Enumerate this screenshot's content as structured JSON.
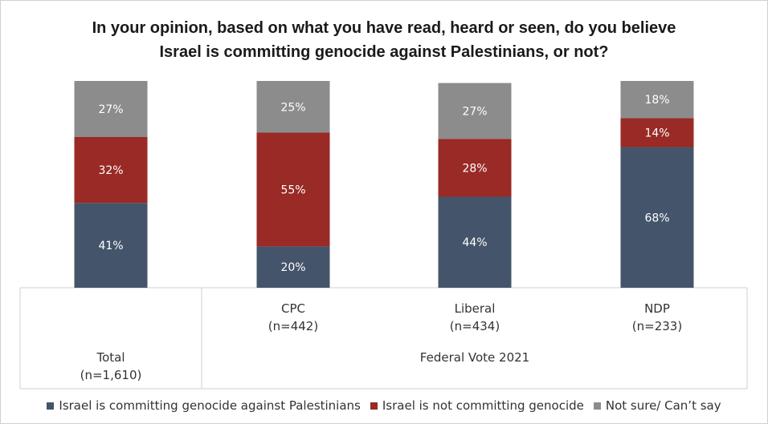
{
  "chart_data": {
    "type": "bar",
    "stacked": true,
    "title_lines": [
      "In your opinion, based on what you have read, heard or seen, do you believe",
      "Israel is committing genocide against Palestinians, or not?"
    ],
    "categories": [
      {
        "name": "Total",
        "n": "(n=1,610)"
      },
      {
        "name": "CPC",
        "n": "(n=442)"
      },
      {
        "name": "Liberal",
        "n": "(n=434)"
      },
      {
        "name": "NDP",
        "n": "(n=233)"
      }
    ],
    "group_label": "Federal Vote 2021",
    "series": [
      {
        "name": "Israel is committing genocide against Palestinians",
        "color": "#44546a",
        "values": [
          41,
          20,
          44,
          68
        ],
        "labels": [
          "41%",
          "20%",
          "44%",
          "68%"
        ]
      },
      {
        "name": "Israel is not committing genocide",
        "color": "#992a25",
        "values": [
          32,
          55,
          28,
          14
        ],
        "labels": [
          "32%",
          "55%",
          "28%",
          "14%"
        ]
      },
      {
        "name": "Not sure/ Can’t say",
        "color": "#8c8c8c",
        "values": [
          27,
          25,
          27,
          18
        ],
        "labels": [
          "27%",
          "25%",
          "27%",
          "18%"
        ]
      }
    ],
    "ylim": [
      0,
      100
    ],
    "legend_position": "bottom"
  }
}
